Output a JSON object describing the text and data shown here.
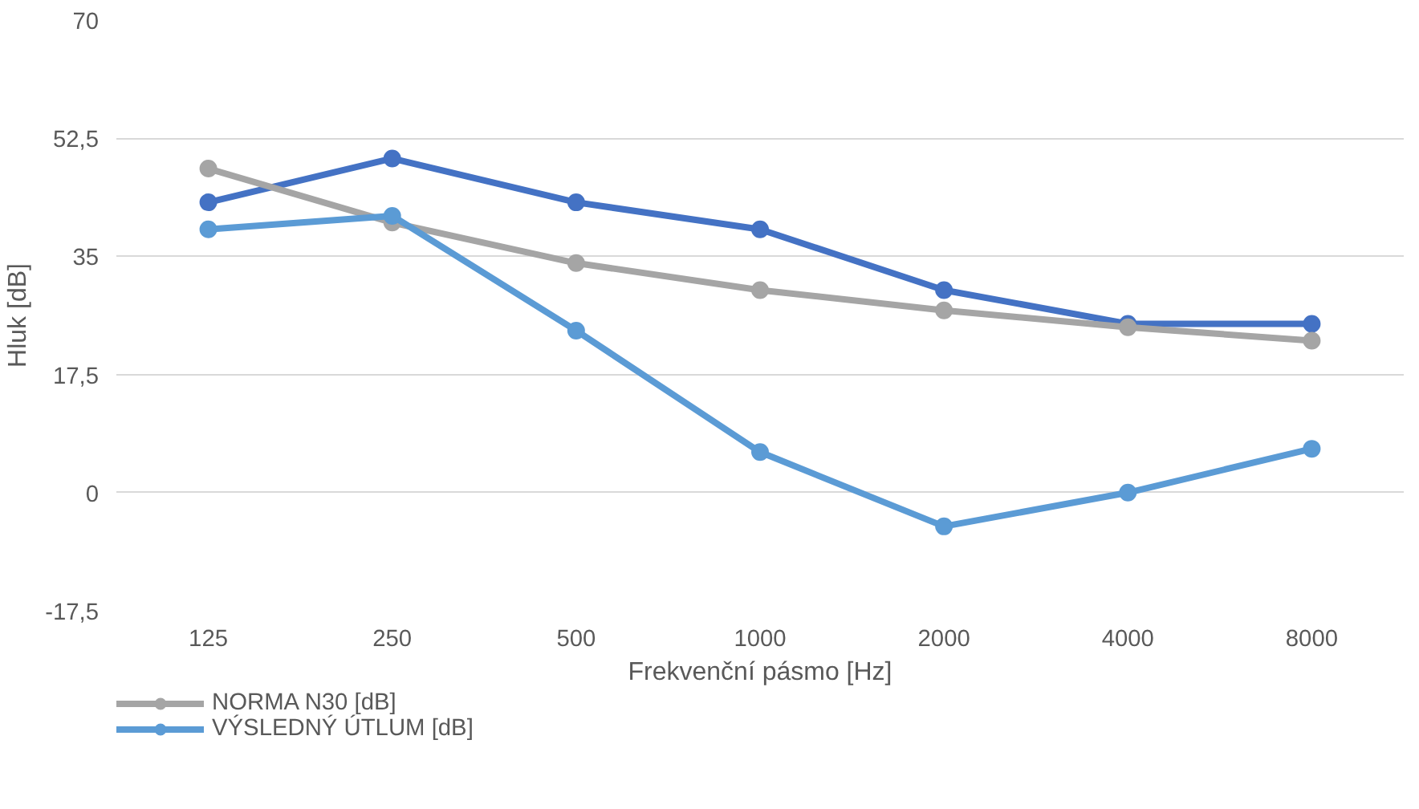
{
  "chart_data": {
    "type": "line",
    "xlabel": "Frekvenční pásmo [Hz]",
    "ylabel": "Hluk [dB]",
    "categories": [
      "125",
      "250",
      "500",
      "1000",
      "2000",
      "4000",
      "8000"
    ],
    "series": [
      {
        "color": "#4472c4",
        "values": [
          43,
          49.5,
          43,
          39,
          30,
          25,
          25
        ]
      },
      {
        "name": "NORMA N30 [dB]",
        "color": "#a5a5a5",
        "values": [
          48,
          40,
          34,
          30,
          27,
          24.5,
          22.5
        ]
      },
      {
        "name": "VÝSLEDNÝ ÚTLUM [dB]",
        "color": "#5b9bd5",
        "values": [
          39,
          41,
          24,
          6,
          -5,
          0,
          6.5
        ]
      }
    ],
    "ylim": [
      -17.5,
      70
    ],
    "yticks": [
      {
        "value": -17.5,
        "label": "-17,5"
      },
      0,
      {
        "value": 17.5,
        "label": "17,5"
      },
      35,
      {
        "value": 52.5,
        "label": "52,5"
      },
      70
    ],
    "grid": "y",
    "legend": "bottom left",
    "marker": "circle",
    "line_style": "solid"
  }
}
